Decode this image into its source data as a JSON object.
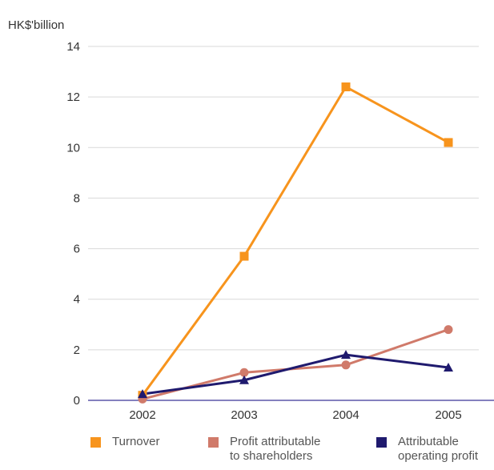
{
  "chart_data": {
    "type": "line",
    "unit_label": "HK$'billion",
    "categories": [
      "2002",
      "2003",
      "2004",
      "2005"
    ],
    "ylim": [
      0,
      14
    ],
    "yticks": [
      "0",
      "2",
      "4",
      "6",
      "8",
      "10",
      "12",
      "14"
    ],
    "grid": true,
    "legend_position": "bottom",
    "series": [
      {
        "name": "Turnover",
        "values": [
          0.2,
          5.7,
          12.4,
          10.2
        ],
        "color": "#F7941D",
        "marker": "square"
      },
      {
        "name": "Profit attributable to shareholders",
        "legend_lines": [
          "Profit attributable",
          "to shareholders"
        ],
        "values": [
          0.05,
          1.1,
          1.4,
          2.8
        ],
        "color": "#D07A6A",
        "marker": "circle"
      },
      {
        "name": "Attributable operating profit",
        "legend_lines": [
          "Attributable",
          "operating profit"
        ],
        "values": [
          0.25,
          0.8,
          1.8,
          1.3
        ],
        "color": "#1F1A6E",
        "marker": "triangle"
      }
    ]
  }
}
